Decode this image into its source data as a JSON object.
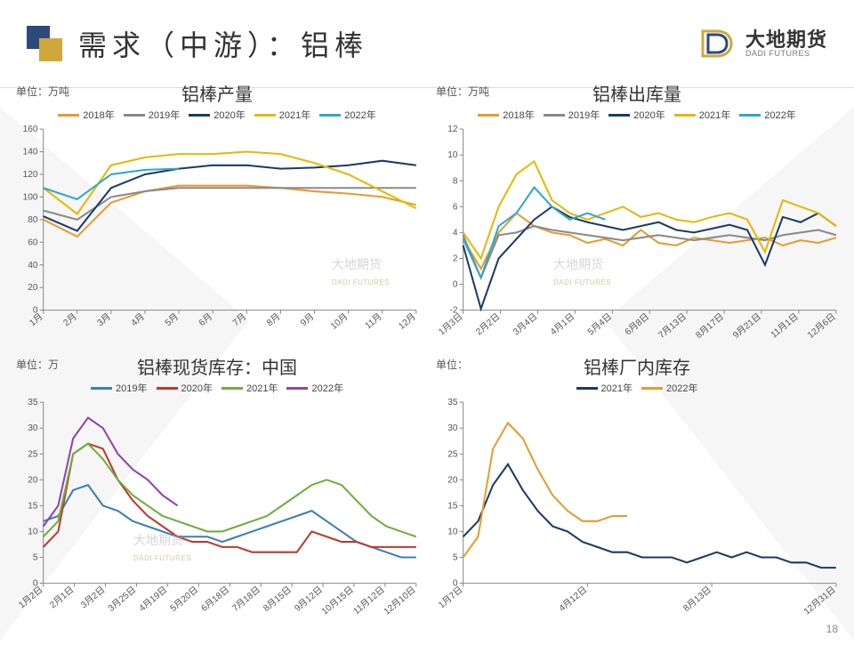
{
  "page": {
    "title": "需求（中游）：铝棒",
    "brand_cn": "大地期货",
    "brand_en": "DADI FUTURES",
    "page_number": "18",
    "watermark_text": "大地期货",
    "watermark_sub": "DADI FUTURES"
  },
  "colors": {
    "c2018": "#e79b2e",
    "c2019": "#8a8a8a",
    "c2020": "#1b3b66",
    "c2021": "#e6b800",
    "c2022": "#2ea9c7",
    "red2020": "#c0392b",
    "green2021": "#6fae3c",
    "purple2022": "#8e44ad",
    "blue2019": "#3a7fb5",
    "blue2021b": "#1b3b66",
    "orange2022b": "#e79b2e"
  },
  "chart1": {
    "title": "铝棒产量",
    "unit": "单位：万吨",
    "xlabels": [
      "1月",
      "2月",
      "3月",
      "4月",
      "5月",
      "6月",
      "7月",
      "8月",
      "9月",
      "10月",
      "11月",
      "12月"
    ],
    "ylim": [
      0,
      160
    ],
    "ytick_step": 20,
    "series": [
      {
        "name": "2018年",
        "colorKey": "c2018",
        "data": [
          80,
          65,
          95,
          105,
          110,
          110,
          110,
          108,
          105,
          103,
          100,
          93
        ]
      },
      {
        "name": "2019年",
        "colorKey": "c2019",
        "data": [
          88,
          80,
          100,
          105,
          108,
          108,
          108,
          108,
          108,
          108,
          108,
          108
        ]
      },
      {
        "name": "2020年",
        "colorKey": "c2020",
        "data": [
          83,
          70,
          108,
          120,
          125,
          128,
          128,
          125,
          126,
          128,
          132,
          128
        ]
      },
      {
        "name": "2021年",
        "colorKey": "c2021",
        "data": [
          108,
          85,
          128,
          135,
          138,
          138,
          140,
          138,
          130,
          120,
          105,
          90
        ]
      },
      {
        "name": "2022年",
        "colorKey": "c2022",
        "data": [
          108,
          98,
          120,
          124,
          125
        ]
      }
    ]
  },
  "chart2": {
    "title": "铝棒出库量",
    "unit": "单位：万吨",
    "xlabels": [
      "1月3日",
      "2月2日",
      "3月4日",
      "4月1日",
      "5月4日",
      "6月8日",
      "7月13日",
      "8月17日",
      "9月21日",
      "11月1日",
      "12月6日"
    ],
    "ylim": [
      -2,
      12
    ],
    "ytick_step": 2,
    "series": [
      {
        "name": "2018年",
        "colorKey": "c2018",
        "data": [
          3.5,
          1.2,
          4.0,
          5.5,
          4.5,
          4.0,
          3.8,
          3.2,
          3.5,
          3.0,
          4.2,
          3.2,
          3.0,
          3.6,
          3.4,
          3.2,
          3.4,
          3.6,
          3.0,
          3.4,
          3.2,
          3.6
        ]
      },
      {
        "name": "2019年",
        "colorKey": "c2019",
        "data": [
          3.8,
          0.5,
          3.8,
          4.0,
          4.5,
          4.2,
          4.0,
          3.8,
          3.6,
          3.4,
          3.6,
          3.8,
          3.6,
          3.4,
          3.6,
          3.8,
          3.6,
          3.4,
          3.8,
          4.0,
          4.2,
          3.8
        ]
      },
      {
        "name": "2020年",
        "colorKey": "c2020",
        "data": [
          3.0,
          -1.9,
          2.0,
          3.5,
          5.0,
          6.0,
          5.2,
          4.8,
          4.5,
          4.2,
          4.5,
          4.8,
          4.2,
          4.0,
          4.3,
          4.6,
          4.2,
          1.5,
          5.2,
          4.8,
          5.5,
          4.5
        ]
      },
      {
        "name": "2021年",
        "colorKey": "c2021",
        "data": [
          4.0,
          2.0,
          6.0,
          8.5,
          9.5,
          6.5,
          5.5,
          5.0,
          5.5,
          6.0,
          5.2,
          5.5,
          5.0,
          4.8,
          5.2,
          5.5,
          5.0,
          2.5,
          6.5,
          6.0,
          5.5,
          4.5
        ]
      },
      {
        "name": "2022年",
        "colorKey": "c2022",
        "data": [
          3.5,
          0.5,
          4.5,
          5.5,
          7.5,
          6.0,
          5.0,
          5.5,
          5.0
        ]
      }
    ]
  },
  "chart3": {
    "title": "铝棒现货库存：中国",
    "unit": "单位：万",
    "xlabels": [
      "1月2日",
      "2月1日",
      "3月2日",
      "3月25日",
      "4月19日",
      "5月20日",
      "6月18日",
      "7月18日",
      "8月15日",
      "9月12日",
      "10月15日",
      "11月12日",
      "12月10日"
    ],
    "ylim": [
      0,
      35
    ],
    "ytick_step": 5,
    "series": [
      {
        "name": "2019年",
        "colorKey": "blue2019",
        "data": [
          12,
          13,
          18,
          19,
          15,
          14,
          12,
          11,
          10,
          9,
          9,
          9,
          8,
          9,
          10,
          11,
          12,
          13,
          14,
          12,
          10,
          8,
          7,
          6,
          5,
          5
        ]
      },
      {
        "name": "2020年",
        "colorKey": "red2020",
        "data": [
          7,
          10,
          25,
          27,
          26,
          20,
          16,
          13,
          11,
          9,
          8,
          8,
          7,
          7,
          6,
          6,
          6,
          6,
          10,
          9,
          8,
          8,
          7,
          7,
          7,
          7
        ]
      },
      {
        "name": "2021年",
        "colorKey": "green2021",
        "data": [
          9,
          12,
          25,
          27,
          24,
          20,
          17,
          15,
          13,
          12,
          11,
          10,
          10,
          11,
          12,
          13,
          15,
          17,
          19,
          20,
          19,
          16,
          13,
          11,
          10,
          9
        ]
      },
      {
        "name": "2022年",
        "colorKey": "purple2022",
        "data": [
          11,
          15,
          28,
          32,
          30,
          25,
          22,
          20,
          17,
          15
        ]
      }
    ]
  },
  "chart4": {
    "title": "铝棒厂内库存",
    "unit": "单位：",
    "xlabels": [
      "1月7日",
      "4月12日",
      "8月13日",
      "12月31日"
    ],
    "ylim": [
      0,
      35
    ],
    "ytick_step": 5,
    "series": [
      {
        "name": "2021年",
        "colorKey": "blue2021b",
        "data": [
          9,
          12,
          19,
          23,
          18,
          14,
          11,
          10,
          8,
          7,
          6,
          6,
          5,
          5,
          5,
          4,
          5,
          6,
          5,
          6,
          5,
          5,
          4,
          4,
          3,
          3
        ]
      },
      {
        "name": "2022年",
        "colorKey": "orange2022b",
        "data": [
          5,
          9,
          26,
          31,
          28,
          22,
          17,
          14,
          12,
          12,
          13,
          13
        ]
      }
    ]
  }
}
